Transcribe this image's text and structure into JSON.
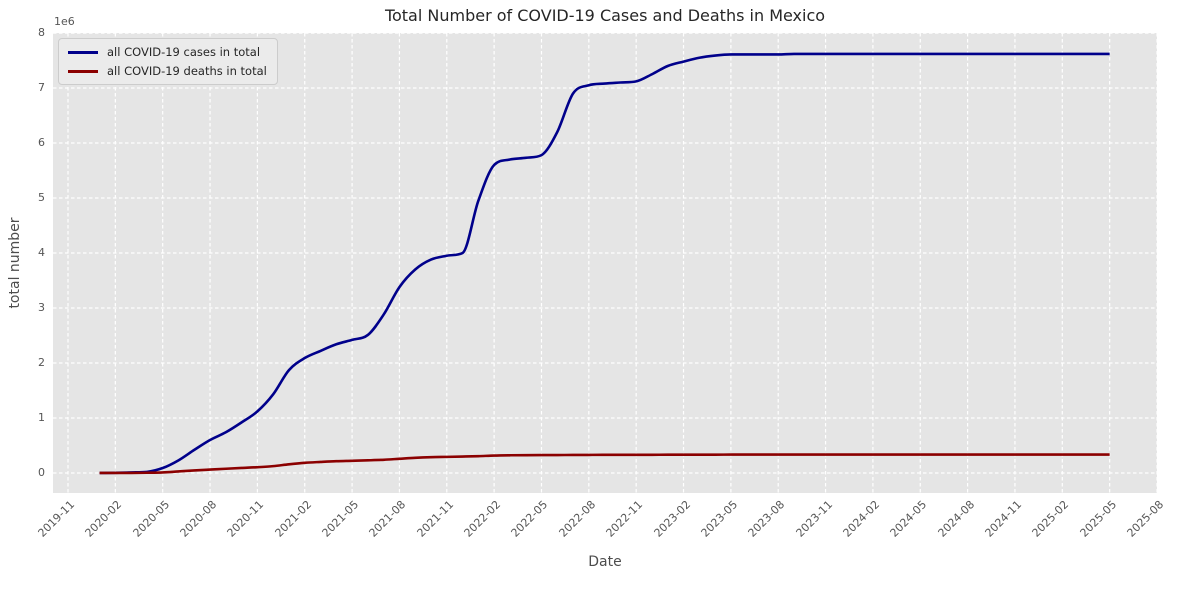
{
  "chart_data": {
    "type": "line",
    "title": "Total Number of COVID-19 Cases and Deaths in Mexico",
    "xlabel": "Date",
    "ylabel": "total number",
    "y_offset_text": "1e6",
    "y_unit": 1000000,
    "ylim": [
      -0.364,
      8
    ],
    "y_ticks": [
      0,
      1,
      2,
      3,
      4,
      5,
      6,
      7,
      8
    ],
    "x_ticks": [
      "2019-11",
      "2020-02",
      "2020-05",
      "2020-08",
      "2020-11",
      "2021-02",
      "2021-05",
      "2021-08",
      "2021-11",
      "2022-02",
      "2022-05",
      "2022-08",
      "2022-11",
      "2023-02",
      "2023-05",
      "2023-08",
      "2023-11",
      "2024-02",
      "2024-05",
      "2024-08",
      "2024-11",
      "2025-02",
      "2025-05",
      "2025-08"
    ],
    "x_range": [
      "2019-11",
      "2025-08"
    ],
    "grid": {
      "on": true,
      "color": "#ffffff",
      "style": "dashed"
    },
    "plot_background": "#e5e5e5",
    "legend_position": "upper left",
    "months": [
      "2020-01",
      "2020-02",
      "2020-03",
      "2020-04",
      "2020-05",
      "2020-06",
      "2020-07",
      "2020-08",
      "2020-09",
      "2020-10",
      "2020-11",
      "2020-12",
      "2021-01",
      "2021-02",
      "2021-03",
      "2021-04",
      "2021-05",
      "2021-06",
      "2021-07",
      "2021-08",
      "2021-09",
      "2021-10",
      "2021-11",
      "2021-12",
      "2022-01",
      "2022-02",
      "2022-03",
      "2022-04",
      "2022-05",
      "2022-06",
      "2022-07",
      "2022-08",
      "2022-09",
      "2022-10",
      "2022-11",
      "2022-12",
      "2023-01",
      "2023-02",
      "2023-03",
      "2023-04",
      "2023-05",
      "2023-06",
      "2023-07",
      "2023-08",
      "2023-09",
      "2023-10",
      "2023-11",
      "2023-12",
      "2024-01",
      "2024-02",
      "2024-03",
      "2024-04",
      "2024-05",
      "2024-06",
      "2024-07",
      "2024-08",
      "2024-09",
      "2024-10",
      "2024-11",
      "2024-12",
      "2025-01",
      "2025-02",
      "2025-03",
      "2025-04",
      "2025-05"
    ],
    "series": [
      {
        "name": "all COVID-19 cases in total",
        "color": "#00008b",
        "values": [
          0.001,
          0.003,
          0.01,
          0.02,
          0.09,
          0.23,
          0.42,
          0.6,
          0.74,
          0.92,
          1.12,
          1.43,
          1.87,
          2.09,
          2.22,
          2.34,
          2.42,
          2.51,
          2.88,
          3.38,
          3.7,
          3.88,
          3.95,
          4.0,
          4.95,
          5.6,
          5.7,
          5.73,
          5.78,
          6.2,
          6.9,
          7.05,
          7.08,
          7.1,
          7.12,
          7.25,
          7.4,
          7.48,
          7.55,
          7.59,
          7.61,
          7.61,
          7.61,
          7.61,
          7.62,
          7.62,
          7.62,
          7.62,
          7.62,
          7.62,
          7.62,
          7.62,
          7.62,
          7.62,
          7.62,
          7.62,
          7.62,
          7.62,
          7.62,
          7.62,
          7.62,
          7.62,
          7.62,
          7.62,
          7.62
        ]
      },
      {
        "name": "all COVID-19 deaths in total",
        "color": "#8b0000",
        "values": [
          0.0,
          0.0,
          0.001,
          0.004,
          0.01,
          0.028,
          0.046,
          0.062,
          0.077,
          0.091,
          0.105,
          0.125,
          0.158,
          0.185,
          0.201,
          0.215,
          0.222,
          0.23,
          0.24,
          0.258,
          0.276,
          0.287,
          0.293,
          0.299,
          0.306,
          0.317,
          0.322,
          0.324,
          0.325,
          0.326,
          0.328,
          0.329,
          0.33,
          0.33,
          0.33,
          0.331,
          0.332,
          0.332,
          0.333,
          0.333,
          0.334,
          0.334,
          0.334,
          0.334,
          0.334,
          0.334,
          0.334,
          0.334,
          0.334,
          0.334,
          0.334,
          0.334,
          0.334,
          0.334,
          0.334,
          0.334,
          0.334,
          0.334,
          0.334,
          0.334,
          0.335,
          0.335,
          0.335,
          0.335,
          0.335
        ]
      }
    ]
  }
}
